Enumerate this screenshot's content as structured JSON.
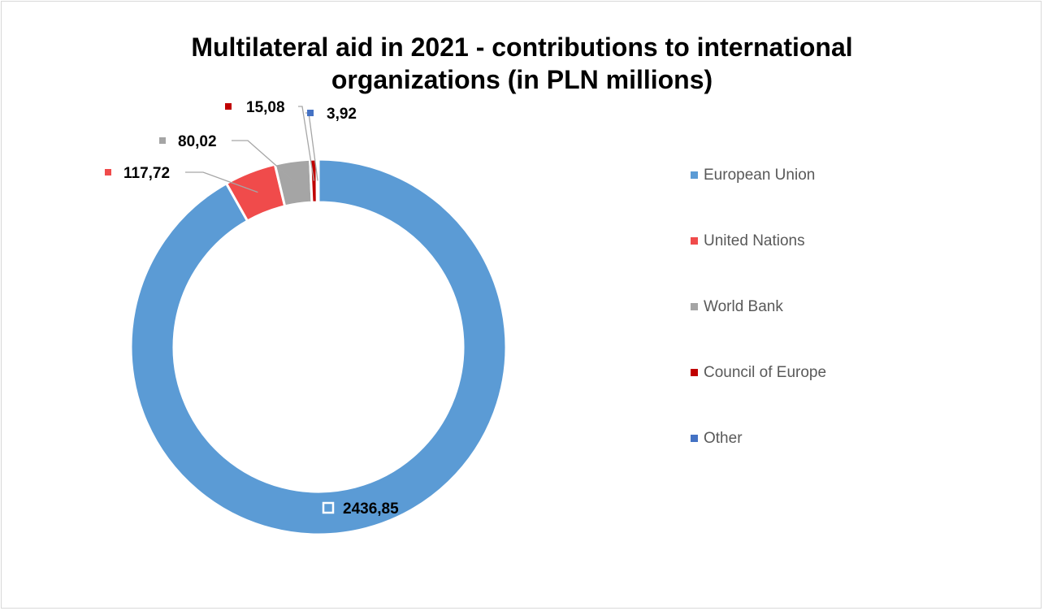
{
  "chart_data": {
    "type": "pie",
    "variant": "doughnut",
    "title": "Multilateral aid in 2021 - contributions to international organizations (in PLN millions)",
    "categories": [
      "European Union",
      "United Nations",
      "World Bank",
      "Council of Europe",
      "Other"
    ],
    "values": [
      2436.85,
      117.72,
      80.02,
      15.08,
      3.92
    ],
    "value_labels": [
      "2436,85",
      "117,72",
      "80,02",
      "15,08",
      "3,92"
    ],
    "colors": [
      "#5b9bd5",
      "#f04b4b",
      "#a5a5a5",
      "#c00000",
      "#4472c4"
    ],
    "legend_position": "right",
    "start_angle_deg": 0,
    "direction": "clockwise"
  }
}
